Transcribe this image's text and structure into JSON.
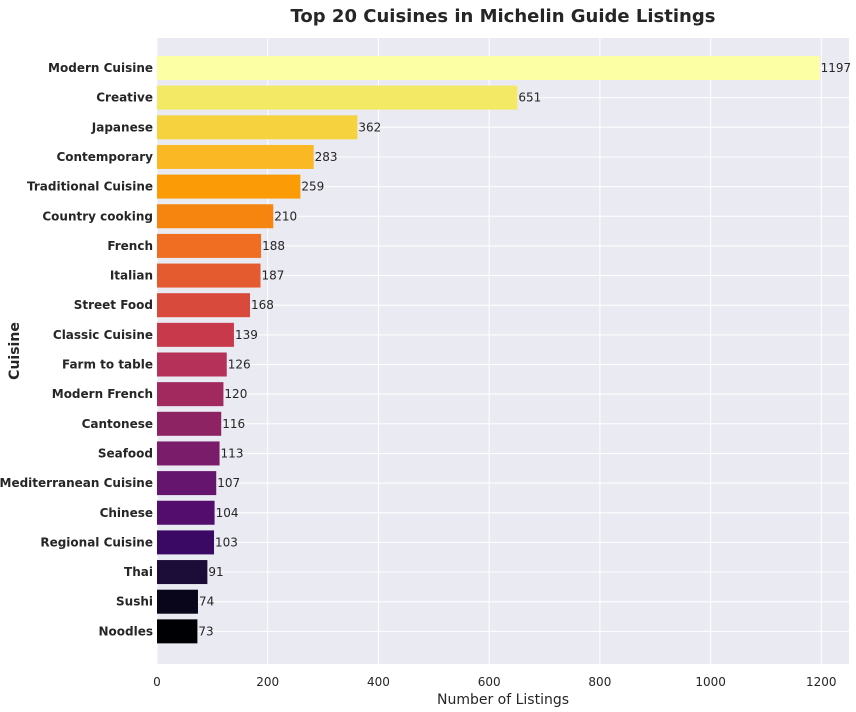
{
  "chart_data": {
    "type": "bar",
    "orientation": "horizontal",
    "title": "Top 20 Cuisines in Michelin Guide Listings",
    "xlabel": "Number of Listings",
    "ylabel": "Cuisine",
    "xlim": [
      0,
      1250
    ],
    "xticks": [
      "0",
      "200",
      "400",
      "600",
      "800",
      "1000",
      "1200"
    ],
    "grid": true,
    "categories": [
      "Modern Cuisine",
      "Creative",
      "Japanese",
      "Contemporary",
      "Traditional Cuisine",
      "Country cooking",
      "French",
      "Italian",
      "Street Food",
      "Classic Cuisine",
      "Farm to table",
      "Modern French",
      "Cantonese",
      "Seafood",
      "Mediterranean Cuisine",
      "Chinese",
      "Regional Cuisine",
      "Thai",
      "Sushi",
      "Noodles"
    ],
    "values": [
      1197,
      651,
      362,
      283,
      259,
      210,
      188,
      187,
      168,
      139,
      126,
      120,
      116,
      113,
      107,
      104,
      103,
      91,
      74,
      73
    ],
    "value_labels": [
      "1197",
      "651",
      "362",
      "283",
      "259",
      "210",
      "188",
      "187",
      "168",
      "139",
      "126",
      "120",
      "116",
      "113",
      "107",
      "104",
      "103",
      "91",
      "74",
      "73"
    ],
    "colors": [
      "#fcffa4",
      "#f3e964",
      "#f6d33e",
      "#fab824",
      "#fb9b06",
      "#f5850e",
      "#ef6e21",
      "#e55b30",
      "#d84a3c",
      "#c83a4b",
      "#b63159",
      "#a2295e",
      "#8e2364",
      "#7b1c6b",
      "#66156e",
      "#530d6d",
      "#3a0963",
      "#1c0d38",
      "#09051a",
      "#000004"
    ],
    "background": "#eaeaf2",
    "grid_color": "#ffffff"
  }
}
